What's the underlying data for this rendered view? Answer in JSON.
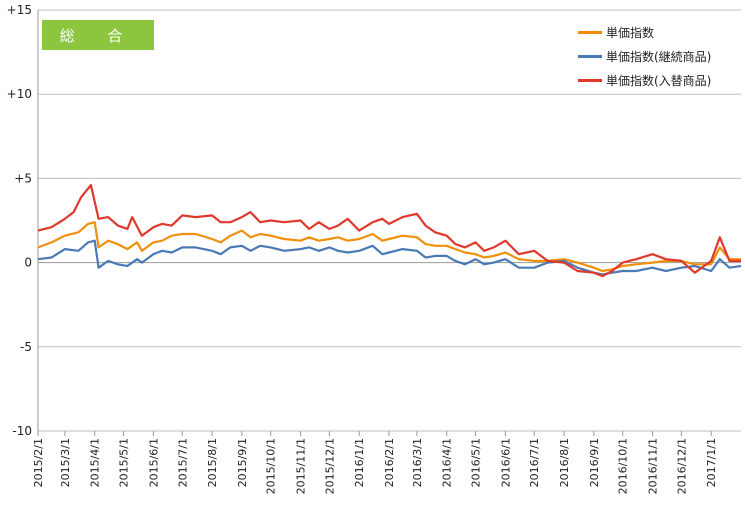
{
  "badge_label": "総 合",
  "legend": [
    {
      "label": "単価指数",
      "color": "#f0900a"
    },
    {
      "label": "単価指数(継続商品)",
      "color": "#4a7ab5"
    },
    {
      "label": "単価指数(入替商品)",
      "color": "#e0382c"
    }
  ],
  "chart_data": {
    "type": "line",
    "ylim": [
      -10,
      15
    ],
    "yticks": [
      15,
      10,
      5,
      0,
      -5,
      -10
    ],
    "ytick_labels": [
      "+15",
      "+10",
      "+5",
      "0",
      "-5",
      "-10"
    ],
    "x_start": "2015/2/1",
    "x_end": "2017/2/1",
    "xtick_labels": [
      "2015/2/1",
      "2015/3/1",
      "2015/4/1",
      "2015/5/1",
      "2015/6/1",
      "2015/7/1",
      "2015/8/1",
      "2015/9/1",
      "2015/10/1",
      "2015/11/1",
      "2015/12/1",
      "2016/1/1",
      "2016/2/1",
      "2016/3/1",
      "2016/4/1",
      "2016/5/1",
      "2016/6/1",
      "2016/7/1",
      "2016/8/1",
      "2016/9/1",
      "2016/10/1",
      "2016/11/1",
      "2016/12/1",
      "2017/1/1"
    ],
    "series": [
      {
        "name": "単価指数",
        "color": "#f0900a",
        "values": [
          [
            "2015/2/1",
            0.9
          ],
          [
            "2015/2/15",
            1.2
          ],
          [
            "2015/3/1",
            1.6
          ],
          [
            "2015/3/15",
            1.8
          ],
          [
            "2015/3/25",
            2.3
          ],
          [
            "2015/4/1",
            2.4
          ],
          [
            "2015/4/5",
            0.9
          ],
          [
            "2015/4/15",
            1.3
          ],
          [
            "2015/4/25",
            1.1
          ],
          [
            "2015/5/5",
            0.8
          ],
          [
            "2015/5/15",
            1.2
          ],
          [
            "2015/5/20",
            0.7
          ],
          [
            "2015/6/1",
            1.2
          ],
          [
            "2015/6/10",
            1.3
          ],
          [
            "2015/6/20",
            1.6
          ],
          [
            "2015/7/1",
            1.7
          ],
          [
            "2015/7/15",
            1.7
          ],
          [
            "2015/8/1",
            1.4
          ],
          [
            "2015/8/10",
            1.2
          ],
          [
            "2015/8/20",
            1.6
          ],
          [
            "2015/9/1",
            1.9
          ],
          [
            "2015/9/10",
            1.5
          ],
          [
            "2015/9/20",
            1.7
          ],
          [
            "2015/10/1",
            1.6
          ],
          [
            "2015/10/15",
            1.4
          ],
          [
            "2015/11/1",
            1.3
          ],
          [
            "2015/11/10",
            1.5
          ],
          [
            "2015/11/20",
            1.3
          ],
          [
            "2015/12/1",
            1.4
          ],
          [
            "2015/12/10",
            1.5
          ],
          [
            "2015/12/20",
            1.3
          ],
          [
            "2016/1/1",
            1.4
          ],
          [
            "2016/1/15",
            1.7
          ],
          [
            "2016/1/25",
            1.3
          ],
          [
            "2016/2/1",
            1.4
          ],
          [
            "2016/2/15",
            1.6
          ],
          [
            "2016/3/1",
            1.5
          ],
          [
            "2016/3/10",
            1.1
          ],
          [
            "2016/3/20",
            1.0
          ],
          [
            "2016/4/1",
            1.0
          ],
          [
            "2016/4/10",
            0.8
          ],
          [
            "2016/4/20",
            0.6
          ],
          [
            "2016/5/1",
            0.5
          ],
          [
            "2016/5/10",
            0.3
          ],
          [
            "2016/5/20",
            0.4
          ],
          [
            "2016/6/1",
            0.6
          ],
          [
            "2016/6/15",
            0.2
          ],
          [
            "2016/7/1",
            0.1
          ],
          [
            "2016/7/15",
            0.1
          ],
          [
            "2016/8/1",
            0.2
          ],
          [
            "2016/8/15",
            0.0
          ],
          [
            "2016/9/1",
            -0.3
          ],
          [
            "2016/9/10",
            -0.5
          ],
          [
            "2016/9/20",
            -0.4
          ],
          [
            "2016/10/1",
            -0.2
          ],
          [
            "2016/10/15",
            -0.1
          ],
          [
            "2016/11/1",
            0.0
          ],
          [
            "2016/11/15",
            0.1
          ],
          [
            "2016/12/1",
            0.1
          ],
          [
            "2016/12/15",
            -0.1
          ],
          [
            "2017/1/1",
            -0.1
          ],
          [
            "2017/1/10",
            0.9
          ],
          [
            "2017/1/20",
            0.2
          ],
          [
            "2017/2/1",
            0.2
          ]
        ]
      },
      {
        "name": "単価指数(継続商品)",
        "color": "#4a7ab5",
        "values": [
          [
            "2015/2/1",
            0.2
          ],
          [
            "2015/2/15",
            0.3
          ],
          [
            "2015/3/1",
            0.8
          ],
          [
            "2015/3/15",
            0.7
          ],
          [
            "2015/3/25",
            1.2
          ],
          [
            "2015/4/1",
            1.3
          ],
          [
            "2015/4/5",
            -0.3
          ],
          [
            "2015/4/15",
            0.1
          ],
          [
            "2015/4/25",
            -0.1
          ],
          [
            "2015/5/5",
            -0.2
          ],
          [
            "2015/5/15",
            0.2
          ],
          [
            "2015/5/20",
            0.0
          ],
          [
            "2015/6/1",
            0.5
          ],
          [
            "2015/6/10",
            0.7
          ],
          [
            "2015/6/20",
            0.6
          ],
          [
            "2015/7/1",
            0.9
          ],
          [
            "2015/7/15",
            0.9
          ],
          [
            "2015/8/1",
            0.7
          ],
          [
            "2015/8/10",
            0.5
          ],
          [
            "2015/8/20",
            0.9
          ],
          [
            "2015/9/1",
            1.0
          ],
          [
            "2015/9/10",
            0.7
          ],
          [
            "2015/9/20",
            1.0
          ],
          [
            "2015/10/1",
            0.9
          ],
          [
            "2015/10/15",
            0.7
          ],
          [
            "2015/11/1",
            0.8
          ],
          [
            "2015/11/10",
            0.9
          ],
          [
            "2015/11/20",
            0.7
          ],
          [
            "2015/12/1",
            0.9
          ],
          [
            "2015/12/10",
            0.7
          ],
          [
            "2015/12/20",
            0.6
          ],
          [
            "2016/1/1",
            0.7
          ],
          [
            "2016/1/15",
            1.0
          ],
          [
            "2016/1/25",
            0.5
          ],
          [
            "2016/2/1",
            0.6
          ],
          [
            "2016/2/15",
            0.8
          ],
          [
            "2016/3/1",
            0.7
          ],
          [
            "2016/3/10",
            0.3
          ],
          [
            "2016/3/20",
            0.4
          ],
          [
            "2016/4/1",
            0.4
          ],
          [
            "2016/4/10",
            0.1
          ],
          [
            "2016/4/20",
            -0.1
          ],
          [
            "2016/5/1",
            0.2
          ],
          [
            "2016/5/10",
            -0.1
          ],
          [
            "2016/5/20",
            0.0
          ],
          [
            "2016/6/1",
            0.2
          ],
          [
            "2016/6/15",
            -0.3
          ],
          [
            "2016/7/1",
            -0.3
          ],
          [
            "2016/7/15",
            0.0
          ],
          [
            "2016/8/1",
            0.1
          ],
          [
            "2016/8/15",
            -0.3
          ],
          [
            "2016/9/1",
            -0.6
          ],
          [
            "2016/9/10",
            -0.7
          ],
          [
            "2016/9/20",
            -0.6
          ],
          [
            "2016/10/1",
            -0.5
          ],
          [
            "2016/10/15",
            -0.5
          ],
          [
            "2016/11/1",
            -0.3
          ],
          [
            "2016/11/15",
            -0.5
          ],
          [
            "2016/12/1",
            -0.3
          ],
          [
            "2016/12/15",
            -0.2
          ],
          [
            "2017/1/1",
            -0.5
          ],
          [
            "2017/1/10",
            0.2
          ],
          [
            "2017/1/20",
            -0.3
          ],
          [
            "2017/2/1",
            -0.2
          ]
        ]
      },
      {
        "name": "単価指数(入替商品)",
        "color": "#e0382c",
        "values": [
          [
            "2015/2/1",
            1.9
          ],
          [
            "2015/2/15",
            2.1
          ],
          [
            "2015/3/1",
            2.6
          ],
          [
            "2015/3/10",
            3.0
          ],
          [
            "2015/3/18",
            3.9
          ],
          [
            "2015/3/28",
            4.6
          ],
          [
            "2015/4/5",
            2.6
          ],
          [
            "2015/4/15",
            2.7
          ],
          [
            "2015/4/25",
            2.2
          ],
          [
            "2015/5/5",
            2.0
          ],
          [
            "2015/5/10",
            2.7
          ],
          [
            "2015/5/20",
            1.6
          ],
          [
            "2015/6/1",
            2.1
          ],
          [
            "2015/6/10",
            2.3
          ],
          [
            "2015/6/20",
            2.2
          ],
          [
            "2015/7/1",
            2.8
          ],
          [
            "2015/7/15",
            2.7
          ],
          [
            "2015/8/1",
            2.8
          ],
          [
            "2015/8/10",
            2.4
          ],
          [
            "2015/8/20",
            2.4
          ],
          [
            "2015/9/1",
            2.7
          ],
          [
            "2015/9/10",
            3.0
          ],
          [
            "2015/9/20",
            2.4
          ],
          [
            "2015/10/1",
            2.5
          ],
          [
            "2015/10/15",
            2.4
          ],
          [
            "2015/11/1",
            2.5
          ],
          [
            "2015/11/10",
            2.0
          ],
          [
            "2015/11/20",
            2.4
          ],
          [
            "2015/12/1",
            2.0
          ],
          [
            "2015/12/10",
            2.2
          ],
          [
            "2015/12/20",
            2.6
          ],
          [
            "2016/1/1",
            1.9
          ],
          [
            "2016/1/15",
            2.4
          ],
          [
            "2016/1/25",
            2.6
          ],
          [
            "2016/2/1",
            2.3
          ],
          [
            "2016/2/15",
            2.7
          ],
          [
            "2016/3/1",
            2.9
          ],
          [
            "2016/3/10",
            2.2
          ],
          [
            "2016/3/20",
            1.8
          ],
          [
            "2016/4/1",
            1.6
          ],
          [
            "2016/4/10",
            1.1
          ],
          [
            "2016/4/20",
            0.9
          ],
          [
            "2016/5/1",
            1.2
          ],
          [
            "2016/5/10",
            0.7
          ],
          [
            "2016/5/20",
            0.9
          ],
          [
            "2016/6/1",
            1.3
          ],
          [
            "2016/6/15",
            0.5
          ],
          [
            "2016/7/1",
            0.7
          ],
          [
            "2016/7/15",
            0.1
          ],
          [
            "2016/8/1",
            0.0
          ],
          [
            "2016/8/15",
            -0.5
          ],
          [
            "2016/9/1",
            -0.6
          ],
          [
            "2016/9/10",
            -0.8
          ],
          [
            "2016/9/20",
            -0.5
          ],
          [
            "2016/10/1",
            0.0
          ],
          [
            "2016/10/15",
            0.2
          ],
          [
            "2016/11/1",
            0.5
          ],
          [
            "2016/11/15",
            0.2
          ],
          [
            "2016/12/1",
            0.1
          ],
          [
            "2016/12/15",
            -0.6
          ],
          [
            "2017/1/1",
            0.1
          ],
          [
            "2017/1/10",
            1.5
          ],
          [
            "2017/1/20",
            0.1
          ],
          [
            "2017/2/1",
            0.1
          ]
        ]
      }
    ]
  }
}
